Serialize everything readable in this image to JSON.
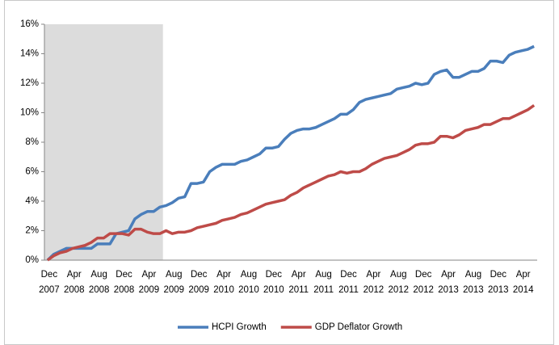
{
  "chart_data": {
    "type": "line",
    "categories": [
      "Dec 2007",
      null,
      null,
      null,
      "Apr 2008",
      null,
      null,
      null,
      "Aug 2008",
      null,
      null,
      null,
      "Dec 2008",
      null,
      null,
      null,
      "Apr 2009",
      null,
      null,
      null,
      "Aug 2009",
      null,
      null,
      null,
      "Dec 2009",
      null,
      null,
      null,
      "Apr 2010",
      null,
      null,
      null,
      "Aug 2010",
      null,
      null,
      null,
      "Dec 2010",
      null,
      null,
      null,
      "Apr 2011",
      null,
      null,
      null,
      "Aug 2011",
      null,
      null,
      null,
      "Dec 2011",
      null,
      null,
      null,
      "Apr 2012",
      null,
      null,
      null,
      "Aug 2012",
      null,
      null,
      null,
      "Dec 2012",
      null,
      null,
      null,
      "Apr 2013",
      null,
      null,
      null,
      "Aug 2013",
      null,
      null,
      null,
      "Dec 2013",
      null,
      null,
      null,
      "Apr 2014",
      null,
      null
    ],
    "series": [
      {
        "name": "HCPI Growth",
        "color": "#4a7ebb",
        "values": [
          0,
          0.4,
          0.6,
          0.8,
          0.8,
          0.8,
          0.8,
          0.8,
          1.1,
          1.1,
          1.1,
          1.8,
          1.9,
          2.0,
          2.8,
          3.1,
          3.3,
          3.3,
          3.6,
          3.7,
          3.9,
          4.2,
          4.3,
          5.2,
          5.2,
          5.3,
          6.0,
          6.3,
          6.5,
          6.5,
          6.5,
          6.7,
          6.8,
          7.0,
          7.2,
          7.6,
          7.6,
          7.7,
          8.2,
          8.6,
          8.8,
          8.9,
          8.9,
          9.0,
          9.2,
          9.4,
          9.6,
          9.9,
          9.9,
          10.2,
          10.7,
          10.9,
          11.0,
          11.1,
          11.2,
          11.3,
          11.6,
          11.7,
          11.8,
          12.0,
          11.9,
          12.0,
          12.6,
          12.8,
          12.9,
          12.4,
          12.4,
          12.6,
          12.8,
          12.8,
          13.0,
          13.5,
          13.5,
          13.4,
          13.9,
          14.1,
          14.2,
          14.3,
          14.5
        ]
      },
      {
        "name": "GDP Deflator Growth",
        "color": "#be4b48",
        "values": [
          0,
          0.3,
          0.5,
          0.6,
          0.8,
          0.9,
          1.0,
          1.2,
          1.5,
          1.5,
          1.8,
          1.8,
          1.8,
          1.7,
          2.1,
          2.1,
          1.9,
          1.8,
          1.8,
          2.0,
          1.8,
          1.9,
          1.9,
          2.0,
          2.2,
          2.3,
          2.4,
          2.5,
          2.7,
          2.8,
          2.9,
          3.1,
          3.2,
          3.4,
          3.6,
          3.8,
          3.9,
          4.0,
          4.1,
          4.4,
          4.6,
          4.9,
          5.1,
          5.3,
          5.5,
          5.7,
          5.8,
          6.0,
          5.9,
          6.0,
          6.0,
          6.2,
          6.5,
          6.7,
          6.9,
          7.0,
          7.1,
          7.3,
          7.5,
          7.8,
          7.9,
          7.9,
          8.0,
          8.4,
          8.4,
          8.3,
          8.5,
          8.8,
          8.9,
          9.0,
          9.2,
          9.2,
          9.4,
          9.6,
          9.6,
          9.8,
          10.0,
          10.2,
          10.5
        ]
      }
    ],
    "ylim": [
      0,
      16
    ],
    "yticks": [
      {
        "value": 0,
        "label": "0%"
      },
      {
        "value": 2,
        "label": "2%"
      },
      {
        "value": 4,
        "label": "4%"
      },
      {
        "value": 6,
        "label": "6%"
      },
      {
        "value": 8,
        "label": "8%"
      },
      {
        "value": 10,
        "label": "10%"
      },
      {
        "value": 12,
        "label": "12%"
      },
      {
        "value": 14,
        "label": "14%"
      },
      {
        "value": 16,
        "label": "16%"
      }
    ],
    "shade": [
      0,
      18
    ],
    "shade_color": "#dcdcdc",
    "grid": false,
    "legend": "bottom"
  }
}
